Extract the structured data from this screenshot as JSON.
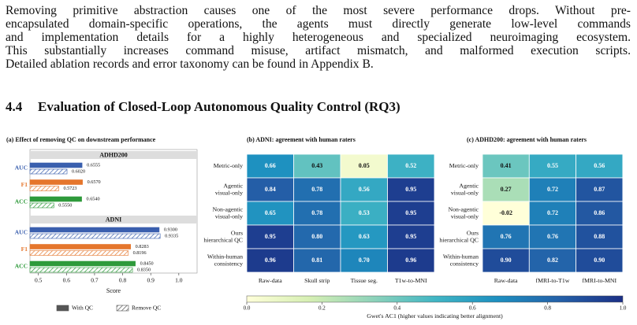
{
  "paragraph": [
    "Removing primitive abstraction causes one of the most severe performance drops. Without pre-",
    "encapsulated domain-specific operations, the agents must directly generate low-level commands",
    "and implementation details for a highly heterogeneous and specialized neuroimaging ecosystem.",
    "This substantially increases command misuse, artifact mismatch, and malformed execution scripts.",
    "Detailed ablation records and error taxonomy can be found in Appendix B."
  ],
  "section": {
    "number": "4.4",
    "title": "Evaluation of Closed-Loop Autonomous Quality Control (RQ3)"
  },
  "figure": {
    "panel_a": {
      "type": "bar",
      "title": "(a) Effect of removing QC on downstream performance",
      "series": [
        {
          "name": "With QC"
        },
        {
          "name": "Remove QC"
        }
      ],
      "legend_color": "#555555",
      "category_colors": [
        "#3a5fae",
        "#e5762c",
        "#2e9a3b"
      ],
      "groups": [
        {
          "name": "ADHD200",
          "categories": [
            "AUC",
            "F1",
            "ACC"
          ],
          "values": [
            [
              0.6555,
              0.657,
              0.654
            ],
            [
              0.602,
              0.5723,
              0.555
            ]
          ],
          "value_labels": [
            [
              "0.6555",
              "0.6570",
              "0.6540"
            ],
            [
              "0.6020",
              "0.5723",
              "0.5550"
            ]
          ]
        },
        {
          "name": "ADNI",
          "categories": [
            "AUC",
            "F1",
            "ACC"
          ],
          "values": [
            [
              0.93,
              0.8283,
              0.845
            ],
            [
              0.9335,
              0.8196,
              0.835
            ]
          ],
          "value_labels": [
            [
              "0.9300",
              "0.8283",
              "0.8450"
            ],
            [
              "0.9335",
              "0.8196",
              "0.8350"
            ]
          ]
        }
      ],
      "xlim": [
        0.47,
        1.065
      ],
      "xticks": [
        0.5,
        0.6,
        0.7,
        0.8,
        0.9,
        {
          "value": 1,
          "label": "1.0"
        }
      ],
      "xlabel": "Score"
    },
    "panel_b": {
      "type": "heatmap",
      "title": "(b) ADNI: agreement with human raters",
      "rows": [
        [
          "Metric-only"
        ],
        [
          "Agentic",
          "visual-only"
        ],
        [
          "Non-agentic",
          "visual-only"
        ],
        [
          "Ours",
          "hierarchical QC"
        ],
        [
          "Within-human",
          "consistency"
        ]
      ],
      "columns": [
        "Raw-data",
        "Skull strip",
        "Tissue seg.",
        "T1w-to-MNI"
      ],
      "values": [
        [
          0.66,
          0.43,
          0.05,
          0.52
        ],
        [
          0.84,
          0.78,
          0.56,
          0.95
        ],
        [
          0.65,
          0.78,
          0.53,
          0.95
        ],
        [
          0.95,
          0.8,
          0.63,
          0.95
        ],
        [
          0.96,
          0.81,
          0.7,
          0.96
        ]
      ],
      "value_labels": [
        [
          "0.66",
          "0.43",
          "0.05",
          "0.52"
        ],
        [
          "0.84",
          "0.78",
          "0.56",
          "0.95"
        ],
        [
          "0.65",
          "0.78",
          "0.53",
          "0.95"
        ],
        [
          "0.95",
          "0.80",
          "0.63",
          "0.95"
        ],
        [
          "0.96",
          "0.81",
          "0.70",
          "0.96"
        ]
      ]
    },
    "panel_c": {
      "type": "heatmap",
      "title": "(c) ADHD200: agreement with human raters",
      "rows": [
        [
          "Metric-only"
        ],
        [
          "Agentic",
          "visual-only"
        ],
        [
          "Non-agentic",
          "visual-only"
        ],
        [
          "Ours",
          "hierarchical QC"
        ],
        [
          "Within-human",
          "consistency"
        ]
      ],
      "columns": [
        "Raw-data",
        "fMRI-to-T1w",
        "fMRI-to-MNI"
      ],
      "values": [
        [
          0.41,
          0.55,
          0.56
        ],
        [
          0.27,
          0.72,
          0.87
        ],
        [
          -0.02,
          0.72,
          0.86
        ],
        [
          0.76,
          0.76,
          0.88
        ],
        [
          0.9,
          0.82,
          0.9
        ]
      ],
      "value_labels": [
        [
          "0.41",
          "0.55",
          "0.56"
        ],
        [
          "0.27",
          "0.72",
          "0.87"
        ],
        [
          "-0.02",
          "0.72",
          "0.86"
        ],
        [
          "0.76",
          "0.76",
          "0.88"
        ],
        [
          "0.90",
          "0.82",
          "0.90"
        ]
      ]
    },
    "colorbar": {
      "label": "Gwet's AC1 (higher values indicating better alignment)",
      "clim": [
        0,
        1
      ],
      "colormap": [
        "#ffffd9",
        "#d6efb3",
        "#8fd3ba",
        "#41b6c4",
        "#1d8fc0",
        "#2460a8",
        "#1b2f85"
      ],
      "ticks": [
        {
          "value": 0,
          "label": "0.0"
        },
        0.2,
        0.4,
        0.6,
        0.8,
        {
          "value": 1,
          "label": "1.0"
        }
      ]
    }
  }
}
